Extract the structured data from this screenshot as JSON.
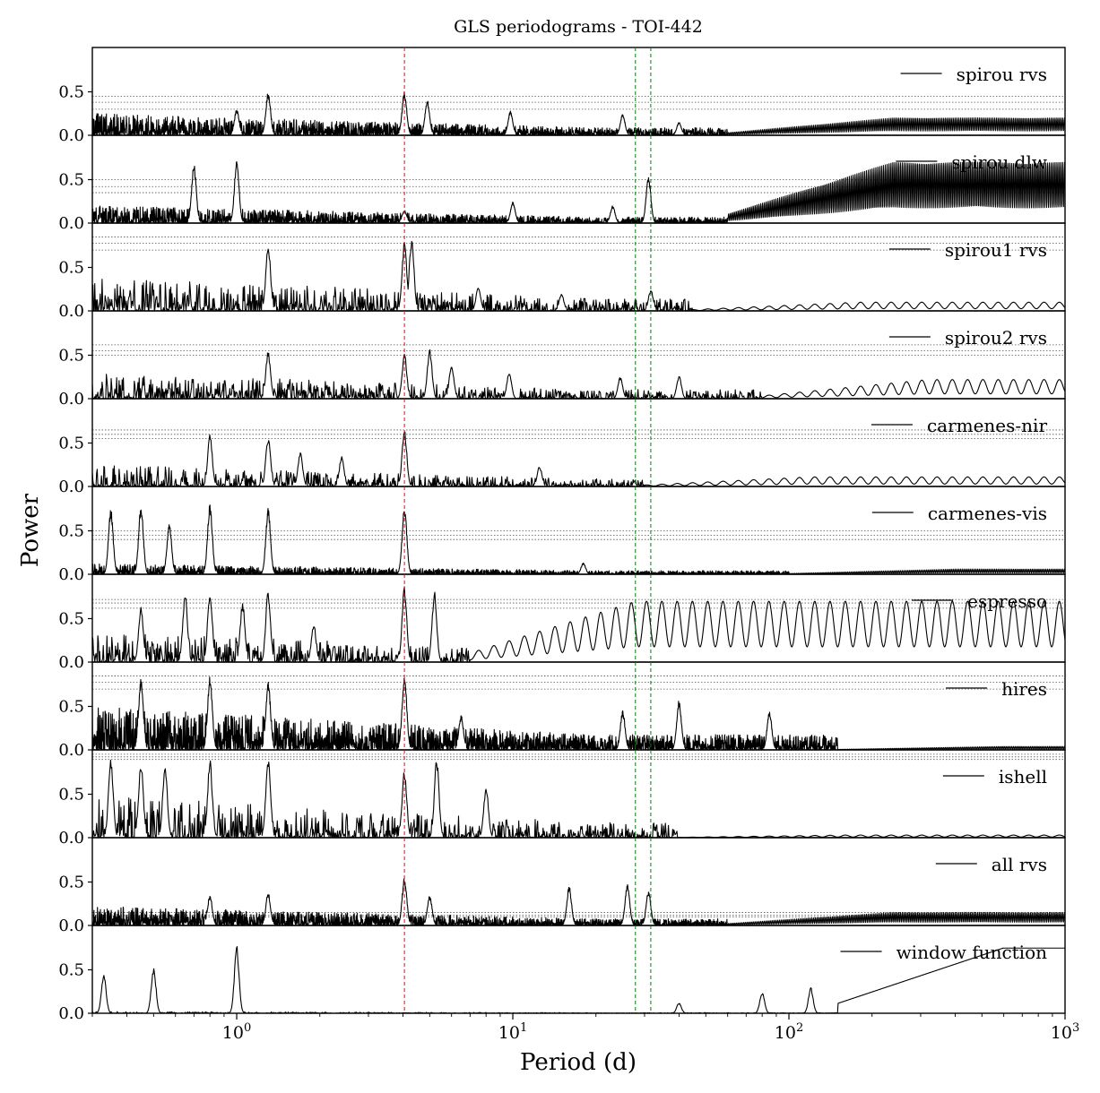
{
  "chart_data": {
    "type": "line",
    "title": "GLS periodograms - TOI-442",
    "xlabel": "Period (d)",
    "ylabel": "Power",
    "xscale": "log",
    "xlim": [
      0.3,
      1000
    ],
    "ylim": [
      0,
      1
    ],
    "x_ticks": [
      {
        "base": "10",
        "exp": "0",
        "value": 1
      },
      {
        "base": "10",
        "exp": "1",
        "value": 10
      },
      {
        "base": "10",
        "exp": "2",
        "value": 100
      },
      {
        "base": "10",
        "exp": "3",
        "value": 1000
      }
    ],
    "y_ticks": [
      "0.0",
      "0.5"
    ],
    "y_tick_values": [
      0,
      0.5
    ],
    "legend_placement": "top-right",
    "vertical_lines": [
      {
        "period": 4.05,
        "color": "#ff0000",
        "style": "dashed"
      },
      {
        "period": 27.8,
        "color": "#008000",
        "style": "dashed"
      },
      {
        "period": 31.6,
        "color": "#008000",
        "style": "dashed"
      }
    ],
    "series": [
      {
        "name": "spirou rvs",
        "fap_levels": [
          0.3,
          0.38,
          0.45
        ],
        "peaks": [
          [
            1.0,
            0.3
          ],
          [
            1.3,
            0.5
          ],
          [
            4.05,
            0.5
          ],
          [
            4.9,
            0.4
          ],
          [
            9.8,
            0.28
          ],
          [
            25,
            0.25
          ],
          [
            40,
            0.15
          ]
        ],
        "long_period": {
          "start": 60,
          "amplitude": 0.2
        },
        "noise": 0.25,
        "dense": true
      },
      {
        "name": "spirou dlw",
        "fap_levels": [
          0.35,
          0.42,
          0.5
        ],
        "peaks": [
          [
            0.7,
            0.68
          ],
          [
            1.0,
            0.72
          ],
          [
            4.05,
            0.15
          ],
          [
            10,
            0.25
          ],
          [
            23,
            0.2
          ],
          [
            31,
            0.55
          ]
        ],
        "long_period": {
          "start": 60,
          "amplitude": 0.7
        },
        "noise": 0.2,
        "dense": true
      },
      {
        "name": "spirou1 rvs",
        "fap_levels": [
          0.7,
          0.78,
          0.85
        ],
        "peaks": [
          [
            1.3,
            0.78
          ],
          [
            4.05,
            0.8
          ],
          [
            4.3,
            0.85
          ],
          [
            7.5,
            0.28
          ],
          [
            15,
            0.2
          ],
          [
            31.6,
            0.25
          ]
        ],
        "long_period": {
          "start": 45,
          "amplitude": 0.1
        },
        "noise": 0.4,
        "dense": false
      },
      {
        "name": "spirou2 rvs",
        "fap_levels": [
          0.5,
          0.55,
          0.62
        ],
        "peaks": [
          [
            1.3,
            0.55
          ],
          [
            4.05,
            0.52
          ],
          [
            5.0,
            0.57
          ],
          [
            6.0,
            0.4
          ],
          [
            9.7,
            0.3
          ],
          [
            24.5,
            0.25
          ],
          [
            40,
            0.27
          ]
        ],
        "long_period": {
          "start": 80,
          "amplitude": 0.22
        },
        "noise": 0.3,
        "dense": false
      },
      {
        "name": "carmenes-nir",
        "fap_levels": [
          0.55,
          0.6,
          0.65
        ],
        "peaks": [
          [
            0.8,
            0.6
          ],
          [
            1.3,
            0.58
          ],
          [
            1.7,
            0.4
          ],
          [
            2.4,
            0.35
          ],
          [
            4.05,
            0.66
          ],
          [
            12.5,
            0.24
          ]
        ],
        "long_period": {
          "start": 30,
          "amplitude": 0.11
        },
        "noise": 0.25,
        "dense": false
      },
      {
        "name": "carmenes-vis",
        "fap_levels": [
          0.4,
          0.45,
          0.5
        ],
        "peaks": [
          [
            0.35,
            0.75
          ],
          [
            0.45,
            0.8
          ],
          [
            0.57,
            0.58
          ],
          [
            0.8,
            0.82
          ],
          [
            1.3,
            0.77
          ],
          [
            4.05,
            0.78
          ],
          [
            18,
            0.13
          ]
        ],
        "long_period": {
          "start": 100,
          "amplitude": 0.06
        },
        "noise": 0.12,
        "dense": true
      },
      {
        "name": "espresso",
        "fap_levels": [
          0.62,
          0.68,
          0.72
        ],
        "peaks": [
          [
            0.45,
            0.65
          ],
          [
            0.65,
            0.8
          ],
          [
            0.8,
            0.85
          ],
          [
            1.05,
            0.7
          ],
          [
            1.3,
            0.85
          ],
          [
            1.9,
            0.45
          ],
          [
            4.05,
            0.88
          ],
          [
            5.2,
            0.82
          ]
        ],
        "long_period": {
          "start": 7,
          "amplitude": 0.7
        },
        "noise": 0.35,
        "dense": false
      },
      {
        "name": "hires",
        "fap_levels": [
          0.7,
          0.78,
          0.85
        ],
        "peaks": [
          [
            0.45,
            0.82
          ],
          [
            0.8,
            0.86
          ],
          [
            1.3,
            0.8
          ],
          [
            4.05,
            0.88
          ],
          [
            6.5,
            0.4
          ],
          [
            25,
            0.45
          ],
          [
            40,
            0.58
          ],
          [
            85,
            0.45
          ]
        ],
        "long_period": {
          "start": 150,
          "amplitude": 0.04
        },
        "noise": 0.5,
        "dense": true
      },
      {
        "name": "ishell",
        "fap_levels": [
          0.9,
          0.93,
          0.96
        ],
        "peaks": [
          [
            0.35,
            0.95
          ],
          [
            0.45,
            0.88
          ],
          [
            0.55,
            0.82
          ],
          [
            0.8,
            0.9
          ],
          [
            1.3,
            0.95
          ],
          [
            4.05,
            0.78
          ],
          [
            5.3,
            0.92
          ],
          [
            8,
            0.6
          ]
        ],
        "long_period": {
          "start": 40,
          "amplitude": 0.03
        },
        "noise": 0.5,
        "dense": false
      },
      {
        "name": "all rvs",
        "fap_levels": [
          0.1,
          0.12,
          0.15
        ],
        "peaks": [
          [
            0.8,
            0.35
          ],
          [
            1.3,
            0.38
          ],
          [
            4.05,
            0.55
          ],
          [
            5,
            0.35
          ],
          [
            16,
            0.45
          ],
          [
            26,
            0.48
          ],
          [
            31,
            0.4
          ]
        ],
        "long_period": {
          "start": 60,
          "amplitude": 0.15
        },
        "noise": 0.22,
        "dense": true
      },
      {
        "name": "window function",
        "fap_levels": [],
        "peaks": [
          [
            0.33,
            0.45
          ],
          [
            0.5,
            0.53
          ],
          [
            1.0,
            0.78
          ],
          [
            40,
            0.12
          ],
          [
            80,
            0.25
          ],
          [
            120,
            0.3
          ]
        ],
        "long_period": {
          "start": 150,
          "amplitude": 0.75
        },
        "noise": 0.02,
        "dense": false
      }
    ]
  }
}
